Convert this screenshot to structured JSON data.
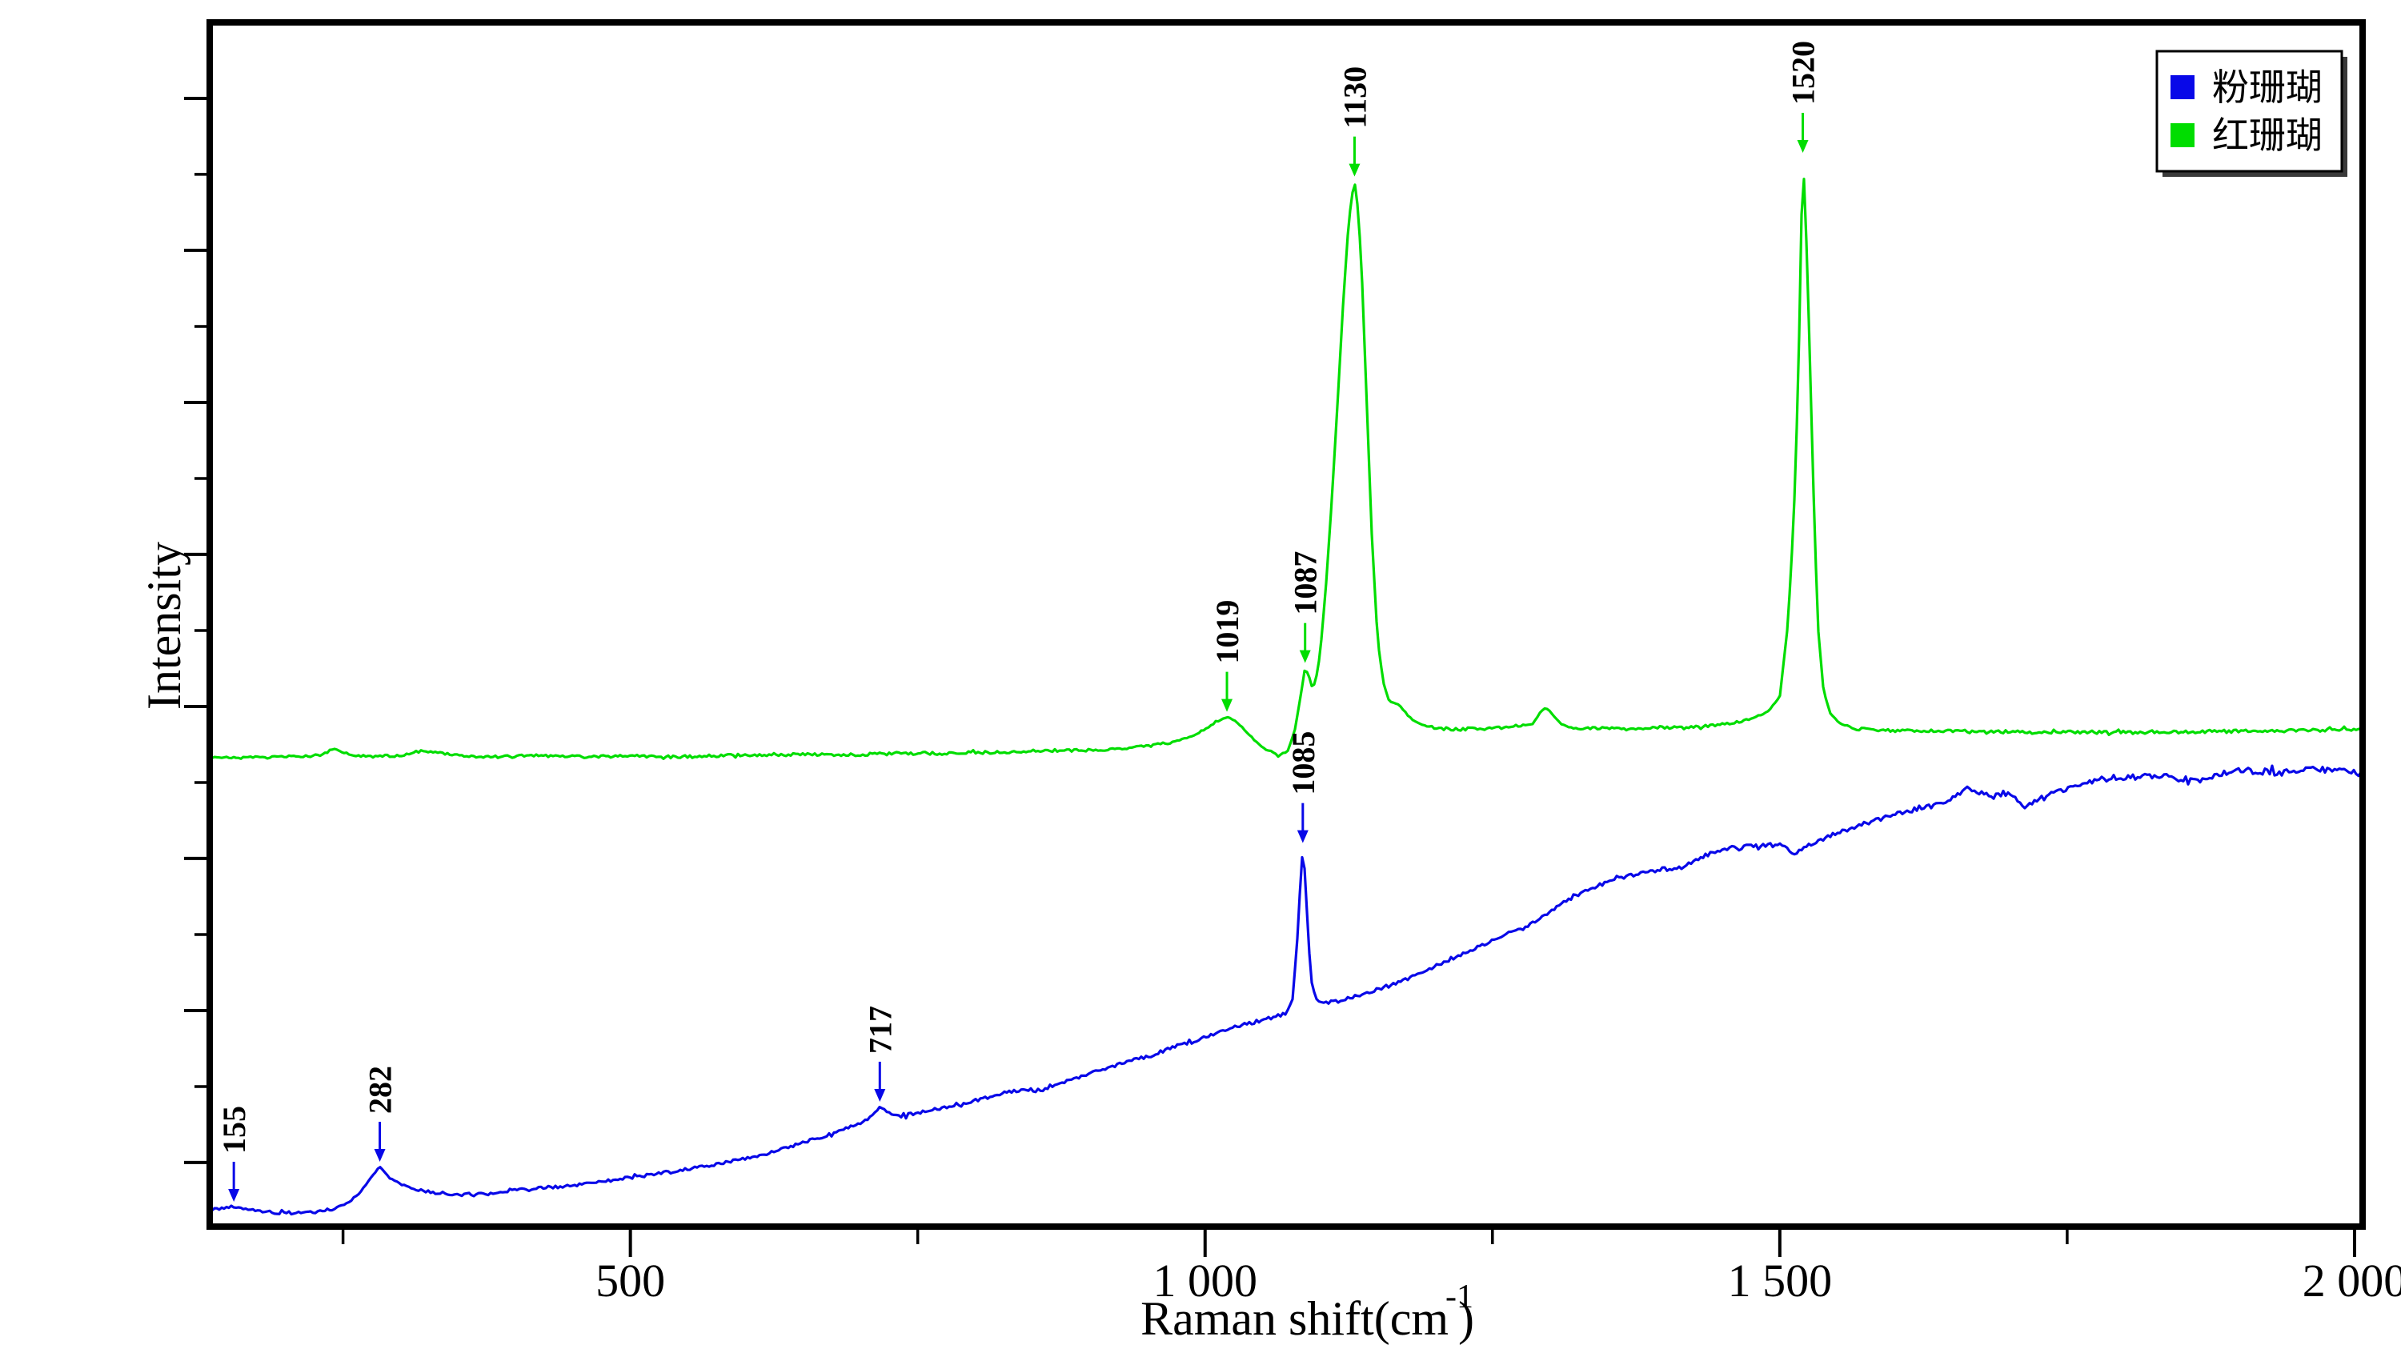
{
  "legend": {
    "position": "top-right",
    "items": [
      {
        "label": "粉珊瑚",
        "color": "#0808e8"
      },
      {
        "label": "红珊瑚",
        "color": "#00dd00"
      }
    ]
  },
  "chart_data": {
    "type": "line",
    "title": "",
    "xlabel": "Raman shift(cm-1)",
    "ylabel": "Intensity",
    "x_axis": {
      "title_main": "Raman shift(cm",
      "title_sup": "-1",
      "title_close": ")",
      "range": [
        134,
        2007
      ],
      "major_ticks": [
        500,
        1000,
        1500,
        2000
      ],
      "major_tick_labels": [
        "500",
        "1 000",
        "1 500",
        "2 000"
      ],
      "minor_ticks": [
        250,
        750,
        1250,
        1750
      ]
    },
    "y_axis": {
      "title": "Intensity",
      "numeric_labels": false,
      "range": [
        0,
        1
      ],
      "major_ticks": [
        0.9369,
        0.8107,
        0.6844,
        0.5582,
        0.4319,
        0.3057,
        0.1794,
        0.0532
      ],
      "minor_ticks": [
        0.8738,
        0.7475,
        0.6213,
        0.495,
        0.3688,
        0.2425,
        0.1163
      ]
    },
    "series": [
      {
        "name": "粉珊瑚",
        "color": "#0808e8",
        "peak_labels": [
          155,
          282,
          717,
          1085
        ],
        "points": [
          [
            134,
            0.014
          ],
          [
            143,
            0.015
          ],
          [
            150,
            0.0158
          ],
          [
            155,
            0.0166
          ],
          [
            161,
            0.015
          ],
          [
            170,
            0.0135
          ],
          [
            182,
            0.0122
          ],
          [
            196,
            0.0115
          ],
          [
            212,
            0.0113
          ],
          [
            228,
            0.0126
          ],
          [
            243,
            0.015
          ],
          [
            255,
            0.02
          ],
          [
            265,
            0.0286
          ],
          [
            274,
            0.04
          ],
          [
            282,
            0.0498
          ],
          [
            290,
            0.041
          ],
          [
            300,
            0.0352
          ],
          [
            312,
            0.031
          ],
          [
            326,
            0.0288
          ],
          [
            342,
            0.0272
          ],
          [
            360,
            0.0265
          ],
          [
            380,
            0.0272
          ],
          [
            400,
            0.03
          ],
          [
            425,
            0.032
          ],
          [
            450,
            0.0345
          ],
          [
            475,
            0.0375
          ],
          [
            500,
            0.0405
          ],
          [
            525,
            0.044
          ],
          [
            550,
            0.0478
          ],
          [
            575,
            0.052
          ],
          [
            600,
            0.0565
          ],
          [
            625,
            0.062
          ],
          [
            648,
            0.069
          ],
          [
            665,
            0.074
          ],
          [
            680,
            0.079
          ],
          [
            695,
            0.084
          ],
          [
            706,
            0.089
          ],
          [
            712,
            0.094
          ],
          [
            717,
            0.0997
          ],
          [
            723,
            0.096
          ],
          [
            730,
            0.093
          ],
          [
            740,
            0.0925
          ],
          [
            752,
            0.0945
          ],
          [
            768,
            0.098
          ],
          [
            785,
            0.102
          ],
          [
            805,
            0.106
          ],
          [
            825,
            0.1105
          ],
          [
            845,
            0.114
          ],
          [
            857,
            0.113
          ],
          [
            870,
            0.118
          ],
          [
            890,
            0.124
          ],
          [
            910,
            0.13
          ],
          [
            930,
            0.136
          ],
          [
            950,
            0.141
          ],
          [
            970,
            0.148
          ],
          [
            985,
            0.153
          ],
          [
            1000,
            0.157
          ],
          [
            1015,
            0.162
          ],
          [
            1030,
            0.167
          ],
          [
            1048,
            0.171
          ],
          [
            1062,
            0.174
          ],
          [
            1070,
            0.1765
          ],
          [
            1076,
            0.188
          ],
          [
            1080,
            0.235
          ],
          [
            1083,
            0.287
          ],
          [
            1085,
            0.3145
          ],
          [
            1087,
            0.292
          ],
          [
            1090,
            0.235
          ],
          [
            1093,
            0.2
          ],
          [
            1097,
            0.189
          ],
          [
            1103,
            0.1855
          ],
          [
            1112,
            0.1865
          ],
          [
            1125,
            0.19
          ],
          [
            1140,
            0.194
          ],
          [
            1160,
            0.2
          ],
          [
            1180,
            0.2075
          ],
          [
            1200,
            0.216
          ],
          [
            1220,
            0.2245
          ],
          [
            1240,
            0.2335
          ],
          [
            1258,
            0.2415
          ],
          [
            1275,
            0.2465
          ],
          [
            1292,
            0.2565
          ],
          [
            1310,
            0.268
          ],
          [
            1328,
            0.2775
          ],
          [
            1345,
            0.2845
          ],
          [
            1362,
            0.29
          ],
          [
            1380,
            0.2935
          ],
          [
            1398,
            0.2965
          ],
          [
            1414,
            0.298
          ],
          [
            1430,
            0.306
          ],
          [
            1449,
            0.3135
          ],
          [
            1465,
            0.3145
          ],
          [
            1482,
            0.3155
          ],
          [
            1497,
            0.3165
          ],
          [
            1504,
            0.316
          ],
          [
            1512,
            0.3085
          ],
          [
            1520,
            0.3145
          ],
          [
            1532,
            0.32
          ],
          [
            1544,
            0.3245
          ],
          [
            1556,
            0.329
          ],
          [
            1570,
            0.3335
          ],
          [
            1584,
            0.338
          ],
          [
            1598,
            0.3415
          ],
          [
            1612,
            0.345
          ],
          [
            1626,
            0.3485
          ],
          [
            1640,
            0.351
          ],
          [
            1652,
            0.357
          ],
          [
            1663,
            0.364
          ],
          [
            1673,
            0.36
          ],
          [
            1686,
            0.357
          ],
          [
            1695,
            0.3595
          ],
          [
            1704,
            0.3575
          ],
          [
            1712,
            0.3475
          ],
          [
            1721,
            0.353
          ],
          [
            1731,
            0.358
          ],
          [
            1742,
            0.361
          ],
          [
            1753,
            0.364
          ],
          [
            1765,
            0.368
          ],
          [
            1776,
            0.371
          ],
          [
            1790,
            0.3725
          ],
          [
            1805,
            0.3735
          ],
          [
            1820,
            0.3735
          ],
          [
            1832,
            0.374
          ],
          [
            1845,
            0.3725
          ],
          [
            1858,
            0.3715
          ],
          [
            1867,
            0.371
          ],
          [
            1880,
            0.375
          ],
          [
            1893,
            0.378
          ],
          [
            1905,
            0.379
          ],
          [
            1920,
            0.378
          ],
          [
            1937,
            0.377
          ],
          [
            1952,
            0.3785
          ],
          [
            1968,
            0.38
          ],
          [
            1985,
            0.3785
          ],
          [
            2007,
            0.3765
          ]
        ]
      },
      {
        "name": "红珊瑚",
        "color": "#00dd00",
        "peak_labels": [
          1019,
          1087,
          1130,
          1520
        ],
        "points": [
          [
            134,
            0.39
          ],
          [
            160,
            0.389
          ],
          [
            200,
            0.39
          ],
          [
            230,
            0.3915
          ],
          [
            238,
            0.3945
          ],
          [
            242,
            0.397
          ],
          [
            248,
            0.3945
          ],
          [
            258,
            0.3915
          ],
          [
            275,
            0.3905
          ],
          [
            300,
            0.391
          ],
          [
            315,
            0.3945
          ],
          [
            325,
            0.395
          ],
          [
            338,
            0.393
          ],
          [
            355,
            0.391
          ],
          [
            380,
            0.39
          ],
          [
            420,
            0.391
          ],
          [
            460,
            0.39
          ],
          [
            500,
            0.391
          ],
          [
            540,
            0.39
          ],
          [
            580,
            0.391
          ],
          [
            620,
            0.392
          ],
          [
            660,
            0.392
          ],
          [
            700,
            0.392
          ],
          [
            740,
            0.393
          ],
          [
            780,
            0.393
          ],
          [
            820,
            0.394
          ],
          [
            860,
            0.395
          ],
          [
            900,
            0.396
          ],
          [
            930,
            0.397
          ],
          [
            950,
            0.399
          ],
          [
            970,
            0.402
          ],
          [
            985,
            0.406
          ],
          [
            1000,
            0.413
          ],
          [
            1010,
            0.419
          ],
          [
            1019,
            0.4235
          ],
          [
            1026,
            0.42
          ],
          [
            1035,
            0.412
          ],
          [
            1045,
            0.402
          ],
          [
            1055,
            0.395
          ],
          [
            1065,
            0.3915
          ],
          [
            1072,
            0.395
          ],
          [
            1078,
            0.412
          ],
          [
            1083,
            0.44
          ],
          [
            1087,
            0.464
          ],
          [
            1090,
            0.458
          ],
          [
            1093,
            0.448
          ],
          [
            1096,
            0.452
          ],
          [
            1100,
            0.475
          ],
          [
            1105,
            0.53
          ],
          [
            1110,
            0.6
          ],
          [
            1115,
            0.68
          ],
          [
            1120,
            0.765
          ],
          [
            1124,
            0.822
          ],
          [
            1127,
            0.852
          ],
          [
            1130,
            0.868
          ],
          [
            1133,
            0.845
          ],
          [
            1136,
            0.8
          ],
          [
            1140,
            0.7
          ],
          [
            1145,
            0.575
          ],
          [
            1150,
            0.488
          ],
          [
            1155,
            0.452
          ],
          [
            1160,
            0.436
          ],
          [
            1165,
            0.4345
          ],
          [
            1170,
            0.432
          ],
          [
            1176,
            0.425
          ],
          [
            1183,
            0.419
          ],
          [
            1192,
            0.4155
          ],
          [
            1205,
            0.4135
          ],
          [
            1220,
            0.413
          ],
          [
            1240,
            0.4135
          ],
          [
            1260,
            0.4145
          ],
          [
            1275,
            0.416
          ],
          [
            1285,
            0.417
          ],
          [
            1292,
            0.4275
          ],
          [
            1297,
            0.4305
          ],
          [
            1302,
            0.4255
          ],
          [
            1310,
            0.417
          ],
          [
            1320,
            0.4145
          ],
          [
            1340,
            0.4135
          ],
          [
            1370,
            0.4135
          ],
          [
            1400,
            0.4145
          ],
          [
            1430,
            0.4155
          ],
          [
            1455,
            0.4175
          ],
          [
            1475,
            0.421
          ],
          [
            1490,
            0.428
          ],
          [
            1500,
            0.44
          ],
          [
            1507,
            0.5
          ],
          [
            1512,
            0.585
          ],
          [
            1516,
            0.7
          ],
          [
            1519,
            0.845
          ],
          [
            1520,
            0.8877
          ],
          [
            1522,
            0.852
          ],
          [
            1525,
            0.76
          ],
          [
            1529,
            0.62
          ],
          [
            1533,
            0.5
          ],
          [
            1538,
            0.445
          ],
          [
            1544,
            0.426
          ],
          [
            1552,
            0.4175
          ],
          [
            1565,
            0.4135
          ],
          [
            1585,
            0.412
          ],
          [
            1620,
            0.4115
          ],
          [
            1660,
            0.411
          ],
          [
            1700,
            0.4105
          ],
          [
            1750,
            0.4105
          ],
          [
            1800,
            0.4105
          ],
          [
            1850,
            0.411
          ],
          [
            1900,
            0.4115
          ],
          [
            1950,
            0.412
          ],
          [
            2007,
            0.4125
          ]
        ]
      }
    ],
    "annotations": [
      {
        "series": 0,
        "x": 155,
        "label": "155"
      },
      {
        "series": 0,
        "x": 282,
        "label": "282"
      },
      {
        "series": 0,
        "x": 717,
        "label": "717"
      },
      {
        "series": 0,
        "x": 1085,
        "label": "1085"
      },
      {
        "series": 1,
        "x": 1019,
        "label": "1019"
      },
      {
        "series": 1,
        "x": 1087,
        "label": "1087"
      },
      {
        "series": 1,
        "x": 1130,
        "label": "1130"
      },
      {
        "series": 1,
        "x": 1520,
        "label": "1520"
      }
    ]
  }
}
